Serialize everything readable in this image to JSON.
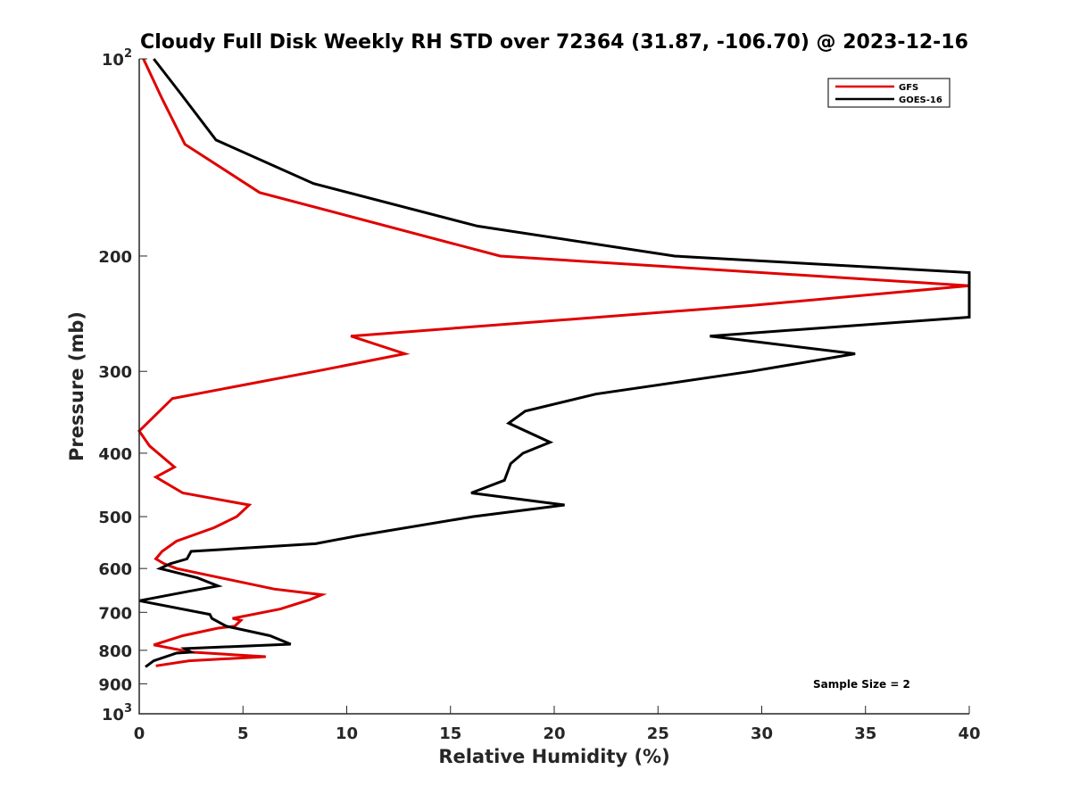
{
  "chart_data": {
    "type": "line",
    "title": "Cloudy Full Disk Weekly RH STD over 72364 (31.87, -106.70) @ 2023-12-16",
    "xlabel": "Relative Humidity (%)",
    "ylabel": "Pressure (mb)",
    "xlim": [
      0,
      40
    ],
    "ylim": [
      100,
      1000
    ],
    "y_scale": "log",
    "y_reversed": true,
    "grid": false,
    "legend_position": "top-right",
    "x_ticks": [
      "0",
      "5",
      "10",
      "15",
      "20",
      "25",
      "30",
      "35",
      "40"
    ],
    "y_ticks": [
      {
        "value": 100,
        "label": "10",
        "sup": "2"
      },
      {
        "value": 200,
        "label": "200"
      },
      {
        "value": 300,
        "label": "300"
      },
      {
        "value": 400,
        "label": "400"
      },
      {
        "value": 500,
        "label": "500"
      },
      {
        "value": 600,
        "label": "600"
      },
      {
        "value": 700,
        "label": "700"
      },
      {
        "value": 800,
        "label": "800"
      },
      {
        "value": 900,
        "label": "900"
      },
      {
        "value": 1000,
        "label": "10",
        "sup": "3"
      }
    ],
    "annotation": "Sample Size = 2",
    "series": [
      {
        "name": "GFS",
        "color": "#e00000",
        "points": [
          [
            0.2,
            100
          ],
          [
            1.1,
            115
          ],
          [
            2.2,
            135
          ],
          [
            5.8,
            160
          ],
          [
            17.4,
            200
          ],
          [
            40,
            222
          ],
          [
            29.5,
            238
          ],
          [
            10.2,
            265
          ],
          [
            12.8,
            282
          ],
          [
            8.5,
            300
          ],
          [
            1.6,
            330
          ],
          [
            0.0,
            370
          ],
          [
            0.5,
            390
          ],
          [
            1.7,
            420
          ],
          [
            0.8,
            435
          ],
          [
            2.1,
            460
          ],
          [
            5.3,
            480
          ],
          [
            4.7,
            500
          ],
          [
            3.6,
            520
          ],
          [
            1.8,
            545
          ],
          [
            1.1,
            565
          ],
          [
            0.8,
            580
          ],
          [
            1.2,
            590
          ],
          [
            1.8,
            600
          ],
          [
            6.5,
            645
          ],
          [
            8.8,
            658
          ],
          [
            8.2,
            670
          ],
          [
            6.8,
            692
          ],
          [
            4.5,
            715
          ],
          [
            4.9,
            720
          ],
          [
            4.6,
            735
          ],
          [
            3.8,
            740
          ],
          [
            2.1,
            760
          ],
          [
            0.7,
            785
          ],
          [
            2.5,
            805
          ],
          [
            6.1,
            818
          ],
          [
            2.4,
            830
          ],
          [
            0.8,
            845
          ]
        ]
      },
      {
        "name": "GOES-16",
        "color": "#000000",
        "points": [
          [
            0.7,
            100
          ],
          [
            2.0,
            113
          ],
          [
            3.7,
            133
          ],
          [
            8.4,
            155
          ],
          [
            16.3,
            180
          ],
          [
            25.8,
            200
          ],
          [
            40,
            212
          ],
          [
            40,
            248
          ],
          [
            27.5,
            265
          ],
          [
            34.5,
            282
          ],
          [
            29.5,
            300
          ],
          [
            22.0,
            325
          ],
          [
            18.6,
            345
          ],
          [
            17.8,
            360
          ],
          [
            19.8,
            385
          ],
          [
            18.5,
            400
          ],
          [
            17.9,
            415
          ],
          [
            17.6,
            440
          ],
          [
            16.0,
            460
          ],
          [
            20.5,
            480
          ],
          [
            16.1,
            500
          ],
          [
            10.5,
            535
          ],
          [
            8.5,
            550
          ],
          [
            2.5,
            565
          ],
          [
            2.3,
            580
          ],
          [
            1.5,
            590
          ],
          [
            1.0,
            600
          ],
          [
            2.8,
            620
          ],
          [
            3.8,
            638
          ],
          [
            2.4,
            650
          ],
          [
            0.0,
            672
          ],
          [
            3.4,
            705
          ],
          [
            3.5,
            715
          ],
          [
            4.2,
            735
          ],
          [
            6.3,
            760
          ],
          [
            7.3,
            783
          ],
          [
            2.2,
            795
          ],
          [
            2.5,
            805
          ],
          [
            1.8,
            808
          ],
          [
            0.7,
            830
          ],
          [
            0.3,
            848
          ]
        ]
      }
    ]
  }
}
